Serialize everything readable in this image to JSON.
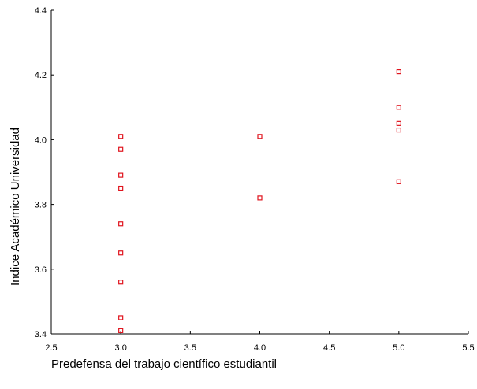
{
  "chart_data": {
    "type": "scatter",
    "xlabel": "Predefensa del trabajo científico estudiantil",
    "ylabel": "Indice Académico Universidad",
    "xlim": [
      2.5,
      5.5
    ],
    "ylim": [
      3.4,
      4.4
    ],
    "x_ticks": [
      "2.5",
      "3.0",
      "3.5",
      "4.0",
      "4.5",
      "5.0",
      "5.5"
    ],
    "y_ticks": [
      "3.4",
      "3.6",
      "3.8",
      "4.0",
      "4.2",
      "4.4"
    ],
    "grid": false,
    "marker": "hollow-square",
    "marker_color": "#e0141e",
    "points": [
      {
        "x": 3.0,
        "y": 4.01
      },
      {
        "x": 3.0,
        "y": 3.97
      },
      {
        "x": 3.0,
        "y": 3.89
      },
      {
        "x": 3.0,
        "y": 3.85
      },
      {
        "x": 3.0,
        "y": 3.74
      },
      {
        "x": 3.0,
        "y": 3.65
      },
      {
        "x": 3.0,
        "y": 3.56
      },
      {
        "x": 3.0,
        "y": 3.45
      },
      {
        "x": 3.0,
        "y": 3.41
      },
      {
        "x": 4.0,
        "y": 4.01
      },
      {
        "x": 4.0,
        "y": 3.82
      },
      {
        "x": 5.0,
        "y": 4.21
      },
      {
        "x": 5.0,
        "y": 4.1
      },
      {
        "x": 5.0,
        "y": 4.05
      },
      {
        "x": 5.0,
        "y": 4.03
      },
      {
        "x": 5.0,
        "y": 3.87
      }
    ]
  }
}
